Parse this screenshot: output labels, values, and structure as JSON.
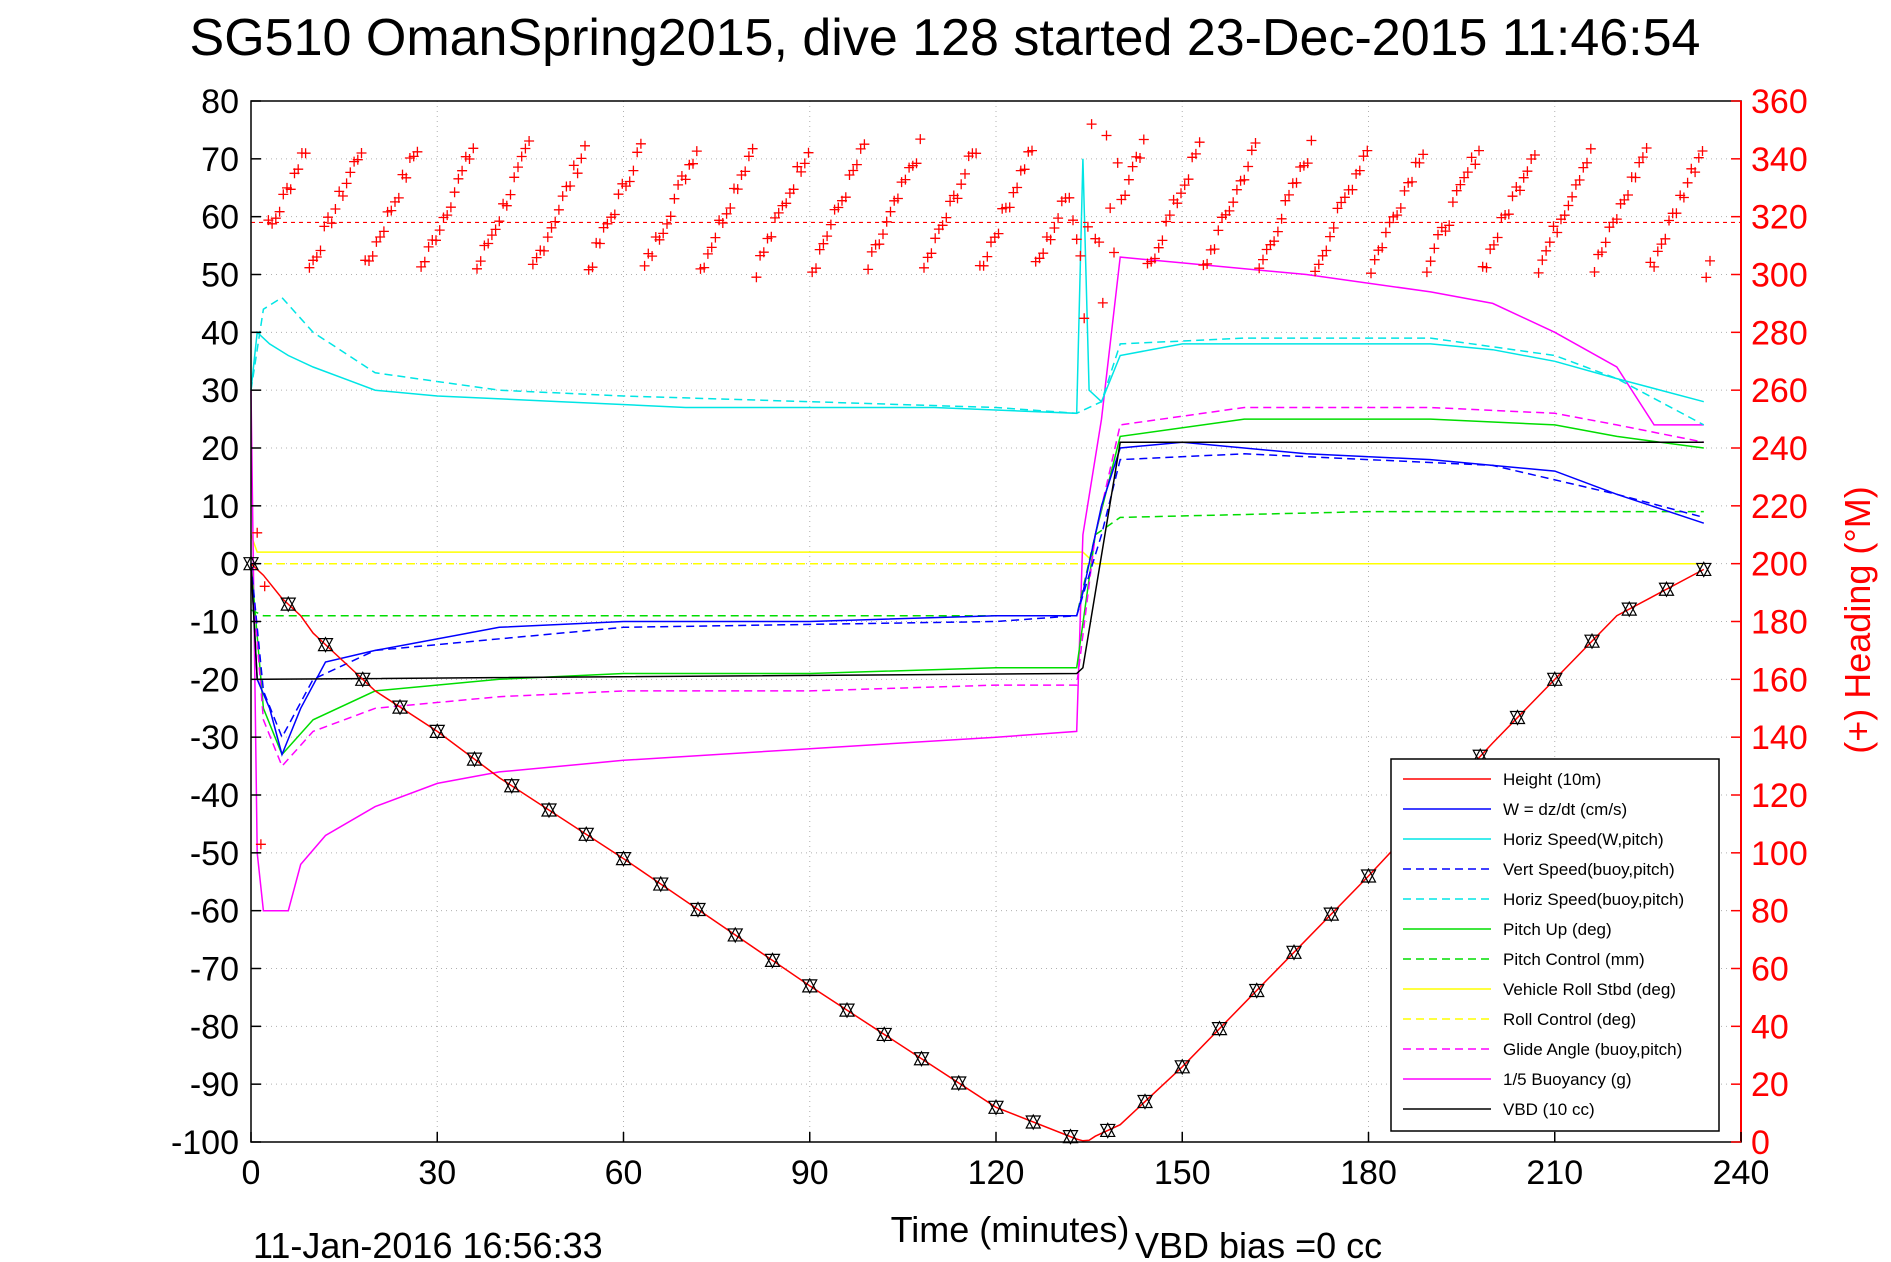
{
  "chart_data": {
    "type": "line",
    "title": "SG510 OmanSpring2015, dive 128 started 23-Dec-2015 11:46:54",
    "xlabel": "Time (minutes)",
    "ylabel": "",
    "ylabel_right": "(+) Heading (°M)",
    "xlim": [
      0,
      240
    ],
    "ylim": [
      -100,
      80
    ],
    "ylim_right": [
      0,
      360
    ],
    "x_ticks": [
      "0",
      "30",
      "60",
      "90",
      "120",
      "150",
      "180",
      "210",
      "240"
    ],
    "y_ticks": [
      "80",
      "70",
      "60",
      "50",
      "40",
      "30",
      "20",
      "10",
      "0",
      "-10",
      "-20",
      "-30",
      "-40",
      "-50",
      "-60",
      "-70",
      "-80",
      "-90",
      "-100"
    ],
    "y_ticks_right": [
      "360",
      "340",
      "320",
      "300",
      "280",
      "260",
      "240",
      "220",
      "200",
      "180",
      "160",
      "140",
      "120",
      "100",
      "80",
      "60",
      "40",
      "20",
      "0"
    ],
    "grid": true,
    "legend_position": "bottom-right",
    "footer_left": "11-Jan-2016 16:56:33",
    "footer_right": "VBD bias =0 cc",
    "target_heading": 318,
    "series": [
      {
        "name": "Height (10m)",
        "color": "#ff0000",
        "style": "solid",
        "x": [
          0,
          2,
          5,
          8,
          10,
          15,
          20,
          30,
          40,
          60,
          90,
          120,
          133,
          134,
          135,
          136,
          140,
          150,
          160,
          180,
          200,
          220,
          234
        ],
        "y": [
          0,
          -2,
          -6,
          -9,
          -12,
          -17,
          -22,
          -29,
          -37,
          -51,
          -73,
          -94,
          -99.5,
          -99.8,
          -99.7,
          -99,
          -97,
          -87,
          -76,
          -54,
          -31,
          -9,
          -1
        ]
      },
      {
        "name": "W = dz/dt (cm/s)",
        "color": "#0000ff",
        "style": "solid",
        "x": [
          0,
          1,
          3,
          5,
          8,
          12,
          20,
          30,
          40,
          60,
          90,
          120,
          133,
          134,
          137,
          140,
          150,
          170,
          190,
          210,
          220,
          234
        ],
        "y": [
          0,
          -20,
          -25,
          -33,
          -25,
          -17,
          -15,
          -13,
          -11,
          -10,
          -10,
          -9,
          -9,
          -5,
          10,
          20,
          21,
          19,
          18,
          16,
          12,
          7
        ]
      },
      {
        "name": "Horiz Speed(W,pitch)",
        "color": "#00e5e5",
        "style": "solid",
        "x": [
          0,
          1,
          3,
          6,
          10,
          20,
          30,
          50,
          70,
          90,
          110,
          133,
          134,
          135,
          137,
          140,
          150,
          170,
          190,
          200,
          210,
          220,
          234
        ],
        "y": [
          30,
          40,
          38,
          36,
          34,
          30,
          29,
          28,
          27,
          27,
          27,
          26,
          70,
          30,
          28,
          36,
          38,
          38,
          38,
          37,
          35,
          32,
          28
        ]
      },
      {
        "name": "Vert Speed(buoy,pitch)",
        "color": "#0000ff",
        "style": "dashed",
        "x": [
          0,
          2,
          5,
          10,
          20,
          60,
          120,
          133,
          137,
          140,
          160,
          200,
          220,
          234
        ],
        "y": [
          0,
          -22,
          -30,
          -20,
          -15,
          -11,
          -10,
          -9,
          5,
          18,
          19,
          17,
          12,
          8
        ]
      },
      {
        "name": "Horiz Speed(buoy,pitch)",
        "color": "#00e5e5",
        "style": "dashed",
        "x": [
          0,
          2,
          5,
          10,
          20,
          40,
          60,
          90,
          120,
          133,
          137,
          140,
          160,
          190,
          210,
          220,
          234
        ],
        "y": [
          30,
          44,
          46,
          40,
          33,
          30,
          29,
          28,
          27,
          26,
          28,
          38,
          39,
          39,
          36,
          32,
          24
        ]
      },
      {
        "name": "Pitch Up (deg)",
        "color": "#00dd00",
        "style": "solid",
        "x": [
          0,
          2,
          5,
          10,
          20,
          40,
          60,
          90,
          120,
          133,
          136,
          140,
          160,
          190,
          210,
          220,
          234
        ],
        "y": [
          0,
          -25,
          -33,
          -27,
          -22,
          -20,
          -19,
          -19,
          -18,
          -18,
          5,
          22,
          25,
          25,
          24,
          22,
          20
        ]
      },
      {
        "name": "Pitch Control (mm)",
        "color": "#00dd00",
        "style": "dashed",
        "x": [
          0,
          2,
          10,
          50,
          100,
          133,
          136,
          140,
          180,
          234
        ],
        "y": [
          -8,
          -9,
          -9,
          -9,
          -9,
          -9,
          5,
          8,
          9,
          9
        ]
      },
      {
        "name": "Vehicle Roll Stbd (deg)",
        "color": "#ffff00",
        "style": "solid",
        "x": [
          0,
          1,
          3,
          134,
          136,
          140,
          234
        ],
        "y": [
          5,
          2,
          2,
          2,
          0,
          0,
          0
        ]
      },
      {
        "name": "Roll Control (deg)",
        "color": "#ffff00",
        "style": "dashed",
        "x": [
          0,
          3,
          134,
          136,
          234
        ],
        "y": [
          0,
          0,
          0,
          0,
          0
        ]
      },
      {
        "name": "Glide Angle (buoy,pitch)",
        "color": "#ff00ff",
        "style": "dashed",
        "x": [
          0,
          2,
          5,
          10,
          20,
          40,
          60,
          90,
          120,
          133,
          136,
          140,
          160,
          190,
          210,
          220,
          234
        ],
        "y": [
          0,
          -27,
          -35,
          -29,
          -25,
          -23,
          -22,
          -22,
          -21,
          -21,
          5,
          24,
          27,
          27,
          26,
          24,
          21
        ]
      },
      {
        "name": "1/5 Buoyancy (g)",
        "color": "#ff00ff",
        "style": "solid",
        "x": [
          0,
          1,
          2,
          6,
          8,
          12,
          20,
          30,
          40,
          60,
          90,
          120,
          133,
          134,
          137,
          140,
          150,
          170,
          190,
          200,
          210,
          220,
          226,
          234
        ],
        "y": [
          30,
          -50,
          -60,
          -60,
          -52,
          -47,
          -42,
          -38,
          -36,
          -34,
          -32,
          -30,
          -29,
          5,
          25,
          53,
          52,
          50,
          47,
          45,
          40,
          34,
          24,
          24
        ]
      },
      {
        "name": "VBD (10 cc)",
        "color": "#000000",
        "style": "solid",
        "x": [
          0,
          1,
          2,
          133,
          134,
          140,
          234
        ],
        "y": [
          0,
          -20,
          -20,
          -19,
          -18,
          21,
          21
        ]
      }
    ]
  }
}
